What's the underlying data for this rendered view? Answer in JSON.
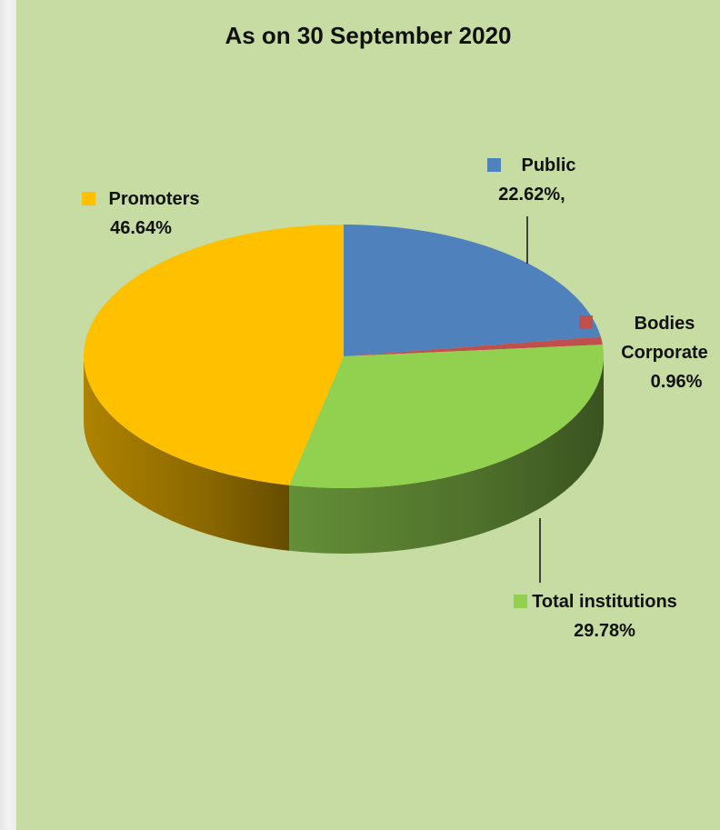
{
  "chart_data": {
    "type": "pie",
    "title": "As on 30 September 2020",
    "slices": [
      {
        "name": "Public",
        "value": 22.62,
        "label": "22.62%,",
        "color": "#4f81bd"
      },
      {
        "name": "Bodies Corporate",
        "value": 0.96,
        "label": "0.96%",
        "color": "#c0504d"
      },
      {
        "name": "Total institutions",
        "value": 29.78,
        "label": "29.78%",
        "color": "#92d050"
      },
      {
        "name": "Promoters",
        "value": 46.64,
        "label": "46.64%",
        "color": "#ffc000"
      }
    ],
    "legend": "inline"
  }
}
